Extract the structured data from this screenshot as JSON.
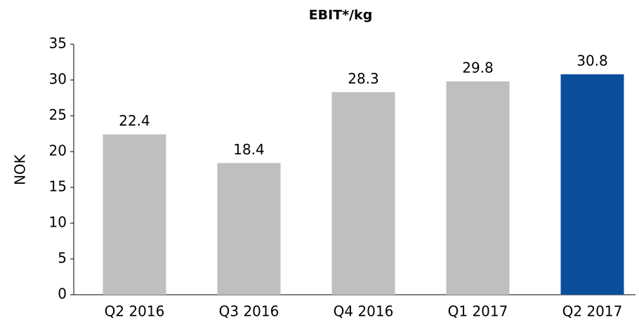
{
  "chart_data": {
    "type": "bar",
    "title": "EBIT*/kg",
    "y_label": "NOK",
    "categories": [
      "Q2 2016",
      "Q3 2016",
      "Q4 2016",
      "Q1 2017",
      "Q2 2017"
    ],
    "values": [
      22.4,
      18.4,
      28.3,
      29.8,
      30.8
    ],
    "colors": [
      "#bfbfbf",
      "#bfbfbf",
      "#bfbfbf",
      "#bfbfbf",
      "#0b4f9c"
    ],
    "ylim": [
      0,
      35
    ],
    "yticks": [
      0,
      5,
      10,
      15,
      20,
      25,
      30,
      35
    ],
    "grid": false
  }
}
